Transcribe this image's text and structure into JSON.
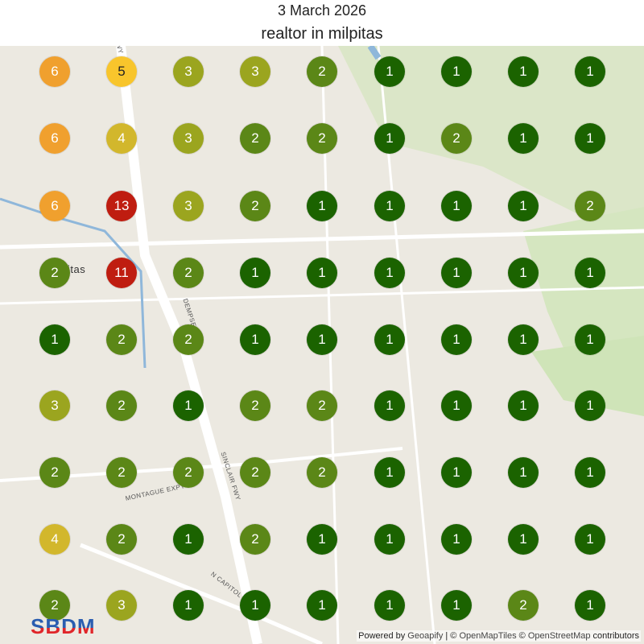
{
  "header": {
    "date": "3 March 2026",
    "title": "realtor in milpitas"
  },
  "map": {
    "labels": [
      "itas",
      "DEMPSEY",
      "SINCLAIR FWY",
      "MONTAGUE EXPY",
      "N CAPITOL",
      "FWY"
    ],
    "grid_ranks": [
      [
        6,
        5,
        3,
        3,
        2,
        1,
        1,
        1,
        1
      ],
      [
        6,
        4,
        3,
        2,
        2,
        1,
        2,
        1,
        1
      ],
      [
        6,
        13,
        3,
        2,
        1,
        1,
        1,
        1,
        2
      ],
      [
        2,
        11,
        2,
        1,
        1,
        1,
        1,
        1,
        1
      ],
      [
        1,
        2,
        2,
        1,
        1,
        1,
        1,
        1,
        1
      ],
      [
        3,
        2,
        1,
        2,
        2,
        1,
        1,
        1,
        1
      ],
      [
        2,
        2,
        2,
        2,
        2,
        1,
        1,
        1,
        1
      ],
      [
        4,
        2,
        1,
        2,
        1,
        1,
        1,
        1,
        1
      ],
      [
        2,
        3,
        1,
        1,
        1,
        1,
        1,
        2,
        1
      ]
    ],
    "rank_colors": {
      "1": "#1b6300",
      "2": "#5b8717",
      "3": "#9ba51f",
      "4": "#d2b72c",
      "5": "#f8c52c",
      "6": "#f0a02e",
      "11": "#bf1d10",
      "13": "#bf1d10"
    },
    "rank_text_colors": {
      "5": "#222222"
    }
  },
  "footer": {
    "logo": "SBDM",
    "attribution_prefix": "Powered by ",
    "attribution_link1": "Geoapify",
    "attribution_mid": " | © ",
    "attribution_link2": "OpenMapTiles",
    "attribution_mid2": " © ",
    "attribution_link3": "OpenStreetMap",
    "attribution_suffix": " contributors"
  }
}
